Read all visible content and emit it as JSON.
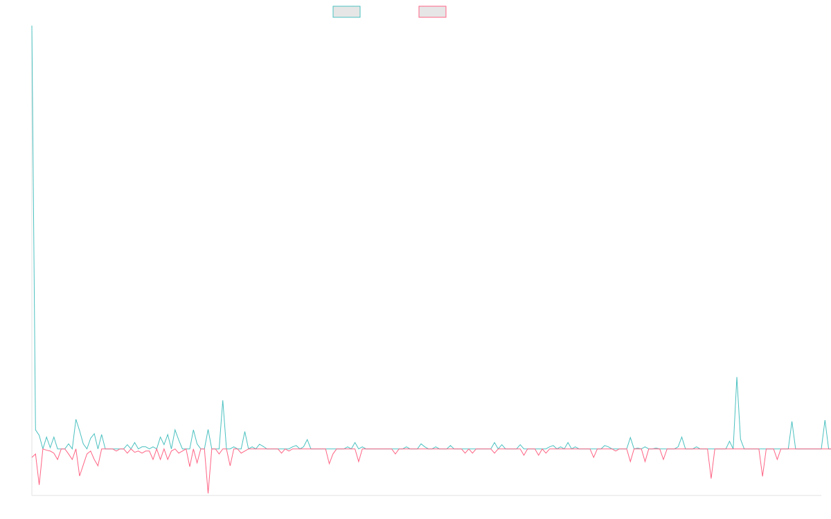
{
  "chart_data": {
    "type": "line",
    "title": "",
    "xlabel": "",
    "ylabel": "",
    "grid": false,
    "legend": "top-center",
    "x_count": 216,
    "series": [
      {
        "color": "#4bc0c0",
        "values": [
          100,
          4.5,
          3.2,
          0,
          2.8,
          0.3,
          2.8,
          0,
          0,
          0,
          1.2,
          0,
          7,
          4.3,
          1.2,
          0,
          2.5,
          3.6,
          0,
          3.4,
          0,
          0,
          0,
          0,
          0,
          0,
          1,
          0,
          1.5,
          0,
          0.5,
          0.5,
          0,
          0.5,
          0,
          2.8,
          1,
          3.4,
          0,
          4.5,
          2.1,
          0,
          0,
          0,
          4.5,
          1.2,
          0,
          0,
          4.6,
          0,
          0,
          0,
          11.5,
          0,
          0,
          0.5,
          0,
          0,
          4.1,
          0,
          0.5,
          0,
          1.1,
          0.6,
          0,
          0,
          0,
          0,
          0,
          0,
          0,
          0.5,
          0.8,
          0,
          0.5,
          2.2,
          0,
          0,
          0,
          0,
          0,
          0,
          0,
          0,
          0,
          0,
          0.5,
          0,
          1.5,
          0,
          0.5,
          0,
          0,
          0,
          0,
          0,
          0,
          0,
          0,
          0,
          0,
          0,
          0.5,
          0,
          0,
          0,
          1.2,
          0.5,
          0,
          0,
          0.5,
          0,
          0,
          0,
          0.8,
          0,
          0,
          0,
          0,
          0,
          0,
          0,
          0,
          0,
          0,
          0,
          1.5,
          0,
          1,
          0,
          0,
          0,
          0,
          1,
          0,
          0,
          0,
          0,
          0,
          0,
          0,
          0.5,
          0.8,
          0,
          0.5,
          0,
          1.5,
          0,
          0.5,
          0,
          0,
          0,
          0,
          0,
          0,
          0,
          0.8,
          0.5,
          0,
          0,
          0,
          0,
          0,
          2.7,
          0,
          0.2,
          0,
          0.5,
          0,
          0,
          0.2,
          0,
          0,
          0,
          0,
          0,
          0.5,
          2.8,
          0,
          0,
          0,
          0.5,
          0,
          0,
          0,
          0,
          0,
          0,
          0,
          0,
          1.8,
          0,
          17,
          2.3,
          0,
          0,
          0,
          0,
          0,
          0,
          0,
          0,
          0,
          0,
          0,
          0,
          0,
          6.5,
          0,
          0,
          0,
          0,
          0,
          0,
          0,
          0,
          6.8,
          0,
          0,
          0,
          0,
          0,
          0,
          0,
          0,
          0,
          0,
          0,
          0
        ]
      },
      {
        "color": "#ff6384",
        "values": [
          -2,
          -1.2,
          -8.5,
          0,
          -0.3,
          -0.5,
          -1,
          -2.5,
          0,
          0,
          -1.2,
          -2.5,
          0,
          -6.4,
          -3.8,
          -1.2,
          -0.5,
          -2.5,
          -4,
          0,
          0,
          0,
          0,
          -0.5,
          0,
          0,
          -1,
          0,
          -0.8,
          -0.5,
          -1,
          -0.5,
          -0.5,
          -2.5,
          0,
          -2.5,
          0,
          -2.5,
          -0.5,
          0,
          -1,
          -0.5,
          0,
          -4.2,
          0,
          -3.3,
          0,
          0,
          -10.5,
          0,
          0,
          -1.2,
          0,
          0,
          -4,
          0,
          0,
          -1,
          -0.5,
          0,
          0,
          0,
          0,
          0,
          0,
          0,
          0,
          0,
          -1,
          0,
          -0.5,
          0,
          0,
          0,
          0,
          0,
          0,
          0,
          0,
          0,
          0,
          -3.5,
          -1.2,
          0,
          0,
          0,
          0,
          0,
          0,
          -3,
          0,
          0,
          0,
          0,
          0,
          0,
          0,
          0,
          0,
          -1.2,
          0,
          0,
          0,
          0,
          0,
          0,
          0,
          0,
          0,
          0,
          0,
          0,
          0,
          0,
          0,
          0,
          0,
          0,
          -1,
          0,
          -1,
          0,
          0,
          0,
          0,
          0,
          -1,
          0,
          0,
          0,
          0,
          0,
          0,
          0,
          -1.5,
          0,
          0,
          0,
          -1.5,
          0,
          -1,
          0,
          0,
          0,
          0,
          0,
          0,
          0,
          0,
          0,
          0,
          0,
          0,
          -2,
          0,
          0,
          0,
          0,
          0,
          -0.5,
          0,
          0,
          0,
          -3,
          0,
          0,
          0,
          -3,
          0,
          0,
          0,
          0,
          -2.5,
          0,
          0,
          0,
          0,
          0,
          0,
          0,
          0,
          0,
          0,
          0,
          0,
          -7,
          0,
          0,
          0,
          0,
          0,
          0,
          0,
          0,
          0,
          0,
          0,
          0,
          0,
          -6.5,
          0,
          0,
          0,
          -2.5,
          0,
          0,
          0,
          0,
          0,
          0,
          0,
          0,
          0,
          0,
          0,
          0,
          0,
          0,
          0,
          0,
          0,
          0,
          0,
          0,
          0,
          0
        ]
      }
    ],
    "ylim": [
      -11,
      100
    ]
  }
}
